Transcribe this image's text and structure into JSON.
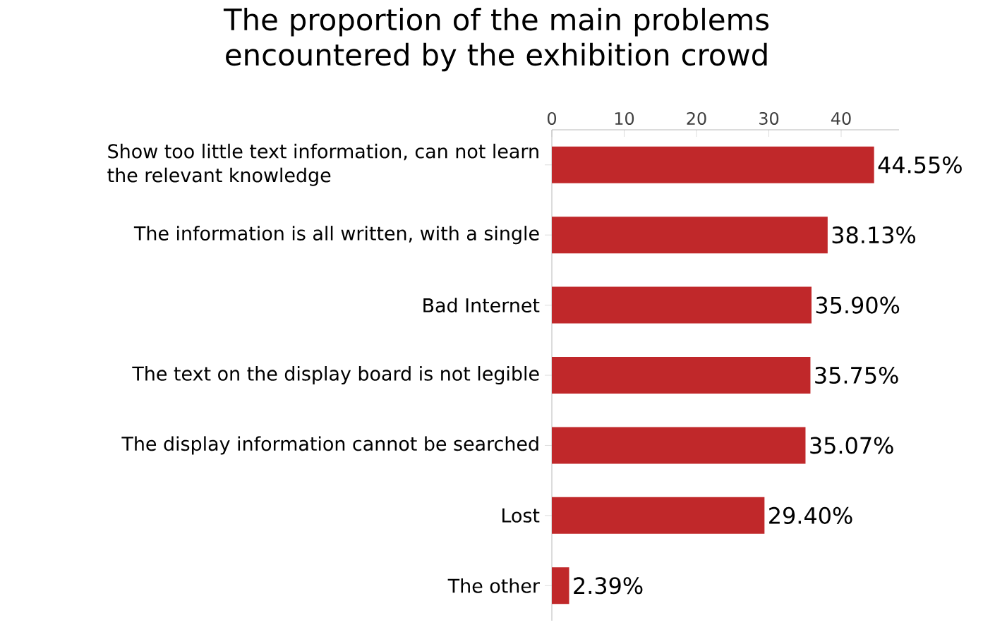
{
  "chart_data": {
    "type": "bar",
    "orientation": "horizontal",
    "title": "The proportion of the main problems encountered by the exhibition crowd",
    "categories": [
      "Show too little text information, can not learn the relevant knowledge",
      "The information is all written, with a single",
      "Bad Internet",
      "The text on the display board is not legible",
      "The display information cannot be searched",
      "Lost",
      "The other"
    ],
    "values": [
      44.55,
      38.13,
      35.9,
      35.75,
      35.07,
      29.4,
      2.39
    ],
    "value_labels": [
      "44.55%",
      "38.13%",
      "35.90%",
      "35.75%",
      "35.07%",
      "29.40%",
      "2.39%"
    ],
    "color": "#c0282a",
    "xlim": [
      0,
      48
    ],
    "xticks": [
      0,
      10,
      20,
      30,
      40
    ]
  }
}
